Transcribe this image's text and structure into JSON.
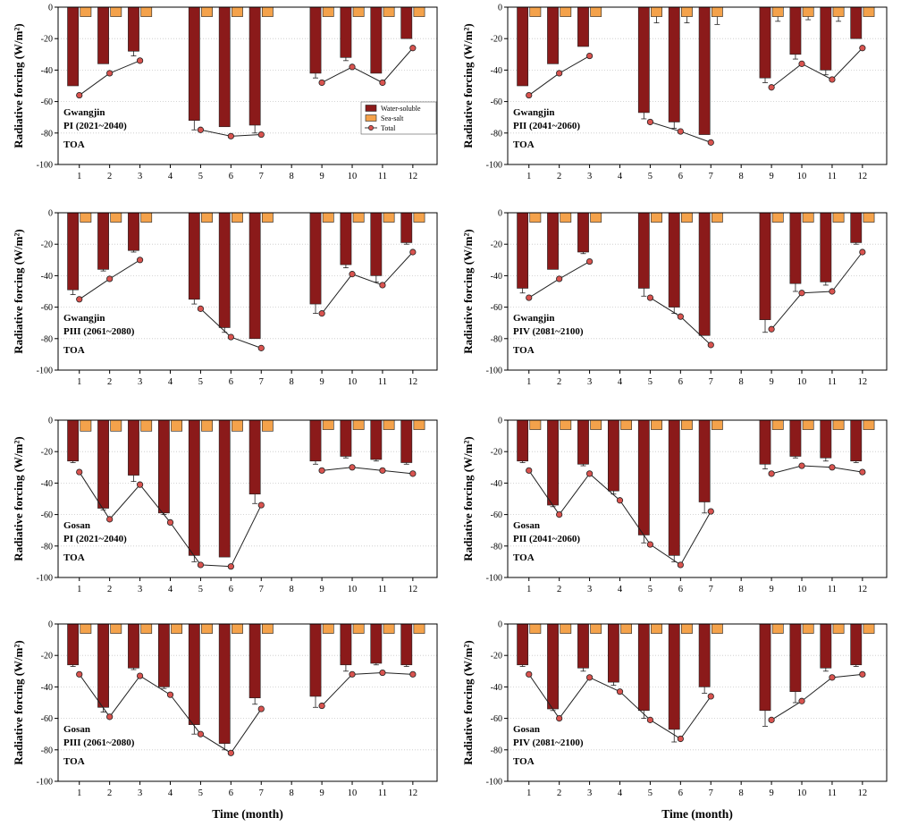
{
  "figure": {
    "ylabel": "Radiative forcing (W/m²)",
    "xlabel": "Time (month)",
    "legend": {
      "placement": "top-right of first panel",
      "entries": [
        {
          "key": "water",
          "label": "Water-soluble",
          "color": "#8B1A1A"
        },
        {
          "key": "sea",
          "label": "Sea-salt",
          "color": "#F4A24B"
        },
        {
          "key": "total",
          "label": "Total",
          "color": "#D9534F"
        }
      ]
    }
  },
  "chart_data": [
    {
      "type": "bar",
      "site": "Gwangjin",
      "period": "PI (2021~2040)",
      "toa": "TOA",
      "ylim": [
        -100,
        0
      ],
      "yticks": [
        0,
        -20,
        -40,
        -60,
        -80,
        -100
      ],
      "categories": [
        "1",
        "2",
        "3",
        "4",
        "5",
        "6",
        "7",
        "8",
        "9",
        "10",
        "11",
        "12"
      ],
      "series": [
        {
          "name": "Water-soluble",
          "values": [
            -50,
            -36,
            -28,
            null,
            -72,
            -76,
            -75,
            null,
            -42,
            -32,
            -42,
            -20
          ],
          "errors": [
            0,
            0,
            3,
            null,
            6,
            0,
            5,
            null,
            3,
            2,
            0,
            0
          ]
        },
        {
          "name": "Sea-salt",
          "values": [
            -6,
            -6,
            -6,
            null,
            -6,
            -6,
            -6,
            null,
            -6,
            -6,
            -6,
            -6
          ],
          "errors": [
            0,
            0,
            0,
            null,
            0,
            0,
            0,
            null,
            0,
            0,
            0,
            0
          ]
        },
        {
          "name": "Total",
          "values": [
            -56,
            -42,
            -34,
            null,
            -78,
            -82,
            -81,
            null,
            -48,
            -38,
            -48,
            -26
          ]
        }
      ]
    },
    {
      "type": "bar",
      "site": "Gwangjin",
      "period": "PII (2041~2060)",
      "toa": "TOA",
      "ylim": [
        -100,
        0
      ],
      "yticks": [
        0,
        -20,
        -40,
        -60,
        -80,
        -100
      ],
      "categories": [
        "1",
        "2",
        "3",
        "4",
        "5",
        "6",
        "7",
        "8",
        "9",
        "10",
        "11",
        "12"
      ],
      "series": [
        {
          "name": "Water-soluble",
          "values": [
            -50,
            -36,
            -25,
            null,
            -67,
            -73,
            -81,
            null,
            -45,
            -30,
            -40,
            -20
          ],
          "errors": [
            0,
            0,
            0,
            null,
            4,
            4,
            0,
            null,
            3,
            3,
            3,
            0
          ]
        },
        {
          "name": "Sea-salt",
          "values": [
            -6,
            -6,
            -6,
            null,
            -6,
            -6,
            -6,
            null,
            -6,
            -6,
            -6,
            -6
          ],
          "errors": [
            0,
            0,
            0,
            null,
            4,
            4,
            5,
            null,
            3,
            2,
            3,
            0
          ]
        },
        {
          "name": "Total",
          "values": [
            -56,
            -42,
            -31,
            null,
            -73,
            -79,
            -86,
            null,
            -51,
            -36,
            -46,
            -26
          ]
        }
      ]
    },
    {
      "type": "bar",
      "site": "Gwangjin",
      "period": "PIII (2061~2080)",
      "toa": "TOA",
      "ylim": [
        -100,
        0
      ],
      "yticks": [
        0,
        -20,
        -40,
        -60,
        -80,
        -100
      ],
      "categories": [
        "1",
        "2",
        "3",
        "4",
        "5",
        "6",
        "7",
        "8",
        "9",
        "10",
        "11",
        "12"
      ],
      "series": [
        {
          "name": "Water-soluble",
          "values": [
            -49,
            -36,
            -24,
            null,
            -55,
            -73,
            -80,
            null,
            -58,
            -33,
            -40,
            -19
          ],
          "errors": [
            3,
            1,
            1,
            null,
            3,
            3,
            0,
            null,
            6,
            2,
            4,
            1
          ]
        },
        {
          "name": "Sea-salt",
          "values": [
            -6,
            -6,
            -6,
            null,
            -6,
            -6,
            -6,
            null,
            -6,
            -6,
            -6,
            -6
          ],
          "errors": [
            0,
            0,
            0,
            null,
            0,
            0,
            0,
            null,
            0,
            0,
            0,
            0
          ]
        },
        {
          "name": "Total",
          "values": [
            -55,
            -42,
            -30,
            null,
            -61,
            -79,
            -86,
            null,
            -64,
            -39,
            -46,
            -25
          ]
        }
      ]
    },
    {
      "type": "bar",
      "site": "Gwangjin",
      "period": "PIV (2081~2100)",
      "toa": "TOA",
      "ylim": [
        -100,
        0
      ],
      "yticks": [
        0,
        -20,
        -40,
        -60,
        -80,
        -100
      ],
      "categories": [
        "1",
        "2",
        "3",
        "4",
        "5",
        "6",
        "7",
        "8",
        "9",
        "10",
        "11",
        "12"
      ],
      "series": [
        {
          "name": "Water-soluble",
          "values": [
            -48,
            -36,
            -25,
            null,
            -48,
            -60,
            -78,
            null,
            -68,
            -45,
            -44,
            -19
          ],
          "errors": [
            3,
            0,
            1,
            null,
            5,
            4,
            0,
            null,
            8,
            5,
            2,
            1
          ]
        },
        {
          "name": "Sea-salt",
          "values": [
            -6,
            -6,
            -6,
            null,
            -6,
            -6,
            -6,
            null,
            -6,
            -6,
            -6,
            -6
          ],
          "errors": [
            0,
            0,
            0,
            null,
            0,
            0,
            0,
            null,
            0,
            0,
            0,
            0
          ]
        },
        {
          "name": "Total",
          "values": [
            -54,
            -42,
            -31,
            null,
            -54,
            -66,
            -84,
            null,
            -74,
            -51,
            -50,
            -25
          ]
        }
      ]
    },
    {
      "type": "bar",
      "site": "Gosan",
      "period": "PI (2021~2040)",
      "toa": "TOA",
      "ylim": [
        -100,
        0
      ],
      "yticks": [
        0,
        -20,
        -40,
        -60,
        -80,
        -100
      ],
      "categories": [
        "1",
        "2",
        "3",
        "4",
        "5",
        "6",
        "7",
        "8",
        "9",
        "10",
        "11",
        "12"
      ],
      "series": [
        {
          "name": "Water-soluble",
          "values": [
            -26,
            -56,
            -35,
            -59,
            -86,
            -87,
            -47,
            null,
            -26,
            -23,
            -25,
            -27
          ],
          "errors": [
            1,
            1,
            4,
            1,
            4,
            0,
            6,
            null,
            2,
            1,
            1,
            1
          ]
        },
        {
          "name": "Sea-salt",
          "values": [
            -7,
            -7,
            -7,
            -7,
            -7,
            -7,
            -7,
            null,
            -6,
            -6,
            -6,
            -6
          ],
          "errors": [
            0,
            0,
            0,
            0,
            0,
            0,
            0,
            null,
            0,
            0,
            0,
            0
          ]
        },
        {
          "name": "Total",
          "values": [
            -33,
            -63,
            -41,
            -65,
            -92,
            -93,
            -54,
            null,
            -32,
            -30,
            -32,
            -34
          ]
        }
      ]
    },
    {
      "type": "bar",
      "site": "Gosan",
      "period": "PII (2041~2060)",
      "toa": "TOA",
      "ylim": [
        -100,
        0
      ],
      "yticks": [
        0,
        -20,
        -40,
        -60,
        -80,
        -100
      ],
      "categories": [
        "1",
        "2",
        "3",
        "4",
        "5",
        "6",
        "7",
        "8",
        "9",
        "10",
        "11",
        "12"
      ],
      "series": [
        {
          "name": "Water-soluble",
          "values": [
            -26,
            -54,
            -28,
            -45,
            -73,
            -86,
            -52,
            null,
            -28,
            -23,
            -24,
            -26
          ],
          "errors": [
            1,
            1,
            1,
            2,
            5,
            4,
            7,
            null,
            3,
            1,
            2,
            1
          ]
        },
        {
          "name": "Sea-salt",
          "values": [
            -6,
            -6,
            -6,
            -6,
            -6,
            -6,
            -6,
            null,
            -6,
            -6,
            -6,
            -6
          ],
          "errors": [
            0,
            0,
            0,
            0,
            0,
            0,
            0,
            null,
            0,
            0,
            0,
            0
          ]
        },
        {
          "name": "Total",
          "values": [
            -32,
            -60,
            -34,
            -51,
            -79,
            -92,
            -58,
            null,
            -34,
            -29,
            -30,
            -33
          ]
        }
      ]
    },
    {
      "type": "bar",
      "site": "Gosan",
      "period": "PIII (2061~2080)",
      "toa": "TOA",
      "ylim": [
        -100,
        0
      ],
      "yticks": [
        0,
        -20,
        -40,
        -60,
        -80,
        -100
      ],
      "categories": [
        "1",
        "2",
        "3",
        "4",
        "5",
        "6",
        "7",
        "8",
        "9",
        "10",
        "11",
        "12"
      ],
      "series": [
        {
          "name": "Water-soluble",
          "values": [
            -26,
            -53,
            -28,
            -40,
            -64,
            -76,
            -47,
            null,
            -46,
            -26,
            -25,
            -26
          ],
          "errors": [
            1,
            3,
            1,
            1,
            6,
            4,
            4,
            null,
            7,
            4,
            1,
            1
          ]
        },
        {
          "name": "Sea-salt",
          "values": [
            -6,
            -6,
            -6,
            -6,
            -6,
            -6,
            -6,
            null,
            -6,
            -6,
            -6,
            -6
          ],
          "errors": [
            0,
            0,
            0,
            0,
            0,
            0,
            0,
            null,
            0,
            0,
            0,
            0
          ]
        },
        {
          "name": "Total",
          "values": [
            -32,
            -59,
            -33,
            -45,
            -70,
            -82,
            -54,
            null,
            -52,
            -32,
            -31,
            -32
          ]
        }
      ]
    },
    {
      "type": "bar",
      "site": "Gosan",
      "period": "PIV (2081~2100)",
      "toa": "TOA",
      "ylim": [
        -100,
        0
      ],
      "yticks": [
        0,
        -20,
        -40,
        -60,
        -80,
        -100
      ],
      "categories": [
        "1",
        "2",
        "3",
        "4",
        "5",
        "6",
        "7",
        "8",
        "9",
        "10",
        "11",
        "12"
      ],
      "series": [
        {
          "name": "Water-soluble",
          "values": [
            -26,
            -54,
            -28,
            -37,
            -55,
            -67,
            -40,
            null,
            -55,
            -43,
            -28,
            -26
          ],
          "errors": [
            1,
            1,
            2,
            2,
            5,
            8,
            4,
            null,
            10,
            7,
            2,
            1
          ]
        },
        {
          "name": "Sea-salt",
          "values": [
            -6,
            -6,
            -6,
            -6,
            -6,
            -6,
            -6,
            null,
            -6,
            -6,
            -6,
            -6
          ],
          "errors": [
            0,
            0,
            0,
            0,
            0,
            0,
            0,
            null,
            0,
            0,
            0,
            0
          ]
        },
        {
          "name": "Total",
          "values": [
            -32,
            -60,
            -34,
            -43,
            -61,
            -73,
            -46,
            null,
            -61,
            -49,
            -34,
            -32
          ]
        }
      ]
    }
  ]
}
